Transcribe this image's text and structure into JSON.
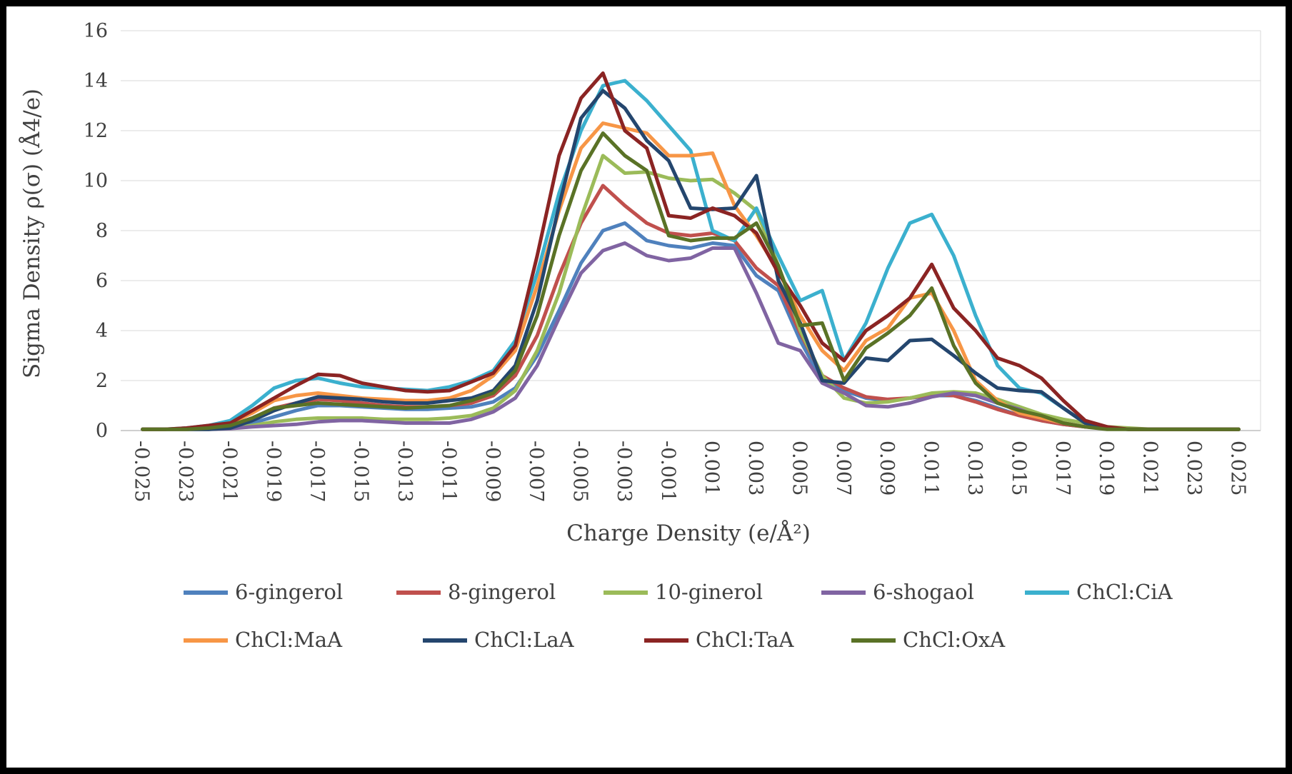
{
  "chart_data": {
    "type": "line",
    "title": "",
    "xlabel": "Charge  Density (e/Å²)",
    "ylabel": "Sigma Density ρ(σ) (Å4/e)",
    "ylim": [
      0,
      16
    ],
    "y_tick_step": 2,
    "y_tick_labels": [
      "0",
      "2",
      "4",
      "6",
      "8",
      "10",
      "12",
      "14",
      "16"
    ],
    "x_start": -0.025,
    "x_step": 0.001,
    "x_tick_labels": [
      "-0.025",
      "-0.023",
      "-0.021",
      "-0.019",
      "-0.017",
      "-0.015",
      "-0.013",
      "-0.011",
      "-0.009",
      "-0.007",
      "-0.005",
      "-0.003",
      "-0.001",
      "0.001",
      "0.003",
      "0.005",
      "0.007",
      "0.009",
      "0.011",
      "0.013",
      "0.015",
      "0.017",
      "0.019",
      "0.021",
      "0.023",
      "0.025"
    ],
    "grid": "horizontal",
    "legend_position": "bottom",
    "series": [
      {
        "name": "6-gingerol",
        "color": "#4F81BD",
        "values": [
          0.05,
          0.05,
          0.05,
          0.08,
          0.15,
          0.3,
          0.55,
          0.8,
          1.0,
          1.0,
          0.95,
          0.9,
          0.85,
          0.85,
          0.9,
          0.95,
          1.15,
          1.7,
          3.0,
          4.8,
          6.7,
          8.0,
          8.3,
          7.6,
          7.4,
          7.3,
          7.5,
          7.4,
          6.2,
          5.6,
          3.6,
          2.0,
          1.6,
          1.3,
          1.2,
          1.3,
          1.4,
          1.4,
          1.2,
          0.9,
          0.6,
          0.4,
          0.25,
          0.15,
          0.1,
          0.05,
          0.05,
          0.05,
          0.05,
          0.05,
          0.05
        ]
      },
      {
        "name": "8-gingerol",
        "color": "#C0504D",
        "values": [
          0.05,
          0.05,
          0.05,
          0.1,
          0.2,
          0.5,
          0.9,
          1.1,
          1.25,
          1.2,
          1.1,
          1.0,
          0.95,
          0.95,
          1.0,
          1.1,
          1.4,
          2.2,
          3.8,
          6.2,
          8.3,
          9.8,
          9.0,
          8.3,
          7.9,
          7.8,
          7.9,
          7.6,
          6.5,
          5.8,
          3.9,
          2.2,
          1.7,
          1.35,
          1.25,
          1.3,
          1.45,
          1.4,
          1.15,
          0.85,
          0.6,
          0.4,
          0.25,
          0.15,
          0.1,
          0.05,
          0.05,
          0.05,
          0.05,
          0.05,
          0.05
        ]
      },
      {
        "name": "10-ginerol",
        "color": "#9BBB59",
        "values": [
          0.05,
          0.05,
          0.05,
          0.05,
          0.1,
          0.2,
          0.35,
          0.45,
          0.5,
          0.5,
          0.5,
          0.45,
          0.45,
          0.45,
          0.5,
          0.6,
          0.9,
          1.6,
          3.2,
          5.5,
          8.5,
          11.0,
          10.3,
          10.35,
          10.1,
          10.0,
          10.05,
          9.5,
          8.8,
          6.6,
          4.0,
          2.2,
          1.3,
          1.1,
          1.15,
          1.3,
          1.5,
          1.55,
          1.5,
          1.25,
          0.95,
          0.65,
          0.45,
          0.3,
          0.15,
          0.1,
          0.05,
          0.05,
          0.05,
          0.05,
          0.05
        ]
      },
      {
        "name": "6-shogaol",
        "color": "#8064A2",
        "values": [
          0.05,
          0.05,
          0.05,
          0.05,
          0.08,
          0.15,
          0.2,
          0.25,
          0.35,
          0.4,
          0.4,
          0.35,
          0.3,
          0.3,
          0.3,
          0.45,
          0.75,
          1.3,
          2.6,
          4.5,
          6.3,
          7.2,
          7.5,
          7.0,
          6.8,
          6.9,
          7.3,
          7.3,
          5.5,
          3.5,
          3.2,
          1.9,
          1.5,
          1.0,
          0.95,
          1.1,
          1.35,
          1.5,
          1.4,
          1.1,
          0.85,
          0.5,
          0.3,
          0.15,
          0.1,
          0.05,
          0.05,
          0.05,
          0.05,
          0.05,
          0.05
        ]
      },
      {
        "name": "ChCl:CiA",
        "color": "#3BB0CE",
        "values": [
          0.05,
          0.05,
          0.1,
          0.2,
          0.4,
          1.0,
          1.7,
          2.0,
          2.1,
          1.9,
          1.75,
          1.7,
          1.65,
          1.6,
          1.75,
          2.0,
          2.4,
          3.6,
          6.3,
          9.5,
          12.0,
          13.8,
          14.0,
          13.2,
          12.2,
          11.2,
          8.0,
          7.6,
          8.9,
          7.0,
          5.2,
          5.6,
          2.8,
          4.3,
          6.5,
          8.3,
          8.65,
          7.0,
          4.6,
          2.6,
          1.7,
          1.5,
          0.9,
          0.3,
          0.1,
          0.05,
          0.05,
          0.05,
          0.05,
          0.05,
          0.05
        ]
      },
      {
        "name": "ChCl:MaA",
        "color": "#F79646",
        "values": [
          0.05,
          0.05,
          0.05,
          0.15,
          0.3,
          0.7,
          1.2,
          1.4,
          1.5,
          1.4,
          1.3,
          1.25,
          1.2,
          1.2,
          1.3,
          1.6,
          2.2,
          3.2,
          5.8,
          8.8,
          11.3,
          12.3,
          12.1,
          11.9,
          11.0,
          11.0,
          11.1,
          9.0,
          7.8,
          6.4,
          4.6,
          3.2,
          2.4,
          3.6,
          4.1,
          5.3,
          5.5,
          4.0,
          2.0,
          1.2,
          0.7,
          0.5,
          0.3,
          0.15,
          0.1,
          0.05,
          0.05,
          0.05,
          0.05,
          0.05,
          0.05
        ]
      },
      {
        "name": "ChCl:LaA",
        "color": "#24466E",
        "values": [
          0.05,
          0.05,
          0.05,
          0.05,
          0.1,
          0.4,
          0.8,
          1.1,
          1.35,
          1.3,
          1.25,
          1.15,
          1.1,
          1.1,
          1.2,
          1.3,
          1.6,
          2.6,
          5.2,
          9.0,
          12.5,
          13.6,
          12.9,
          11.6,
          10.8,
          8.9,
          8.85,
          8.9,
          10.2,
          6.0,
          4.3,
          2.0,
          1.9,
          2.9,
          2.8,
          3.6,
          3.65,
          3.0,
          2.3,
          1.7,
          1.6,
          1.55,
          0.9,
          0.3,
          0.1,
          0.05,
          0.05,
          0.05,
          0.05,
          0.05,
          0.05
        ]
      },
      {
        "name": "ChCl:TaA",
        "color": "#8B2423",
        "values": [
          0.05,
          0.05,
          0.1,
          0.2,
          0.3,
          0.8,
          1.3,
          1.8,
          2.25,
          2.2,
          1.9,
          1.75,
          1.6,
          1.55,
          1.6,
          1.95,
          2.3,
          3.4,
          7.0,
          11.0,
          13.3,
          14.3,
          12.0,
          11.3,
          8.6,
          8.5,
          8.9,
          8.6,
          7.9,
          6.3,
          5.0,
          3.5,
          2.8,
          4.0,
          4.6,
          5.3,
          6.65,
          4.9,
          4.0,
          2.9,
          2.6,
          2.1,
          1.2,
          0.4,
          0.15,
          0.05,
          0.05,
          0.05,
          0.05,
          0.05,
          0.05
        ]
      },
      {
        "name": "ChCl:OxA",
        "color": "#5A7226",
        "values": [
          0.05,
          0.05,
          0.05,
          0.1,
          0.2,
          0.5,
          0.9,
          1.0,
          1.1,
          1.05,
          1.0,
          0.95,
          0.9,
          0.95,
          1.0,
          1.2,
          1.5,
          2.4,
          4.6,
          7.8,
          10.4,
          11.9,
          11.0,
          10.4,
          7.8,
          7.6,
          7.7,
          7.7,
          8.3,
          6.6,
          4.2,
          4.3,
          2.0,
          3.3,
          3.9,
          4.6,
          5.7,
          3.4,
          1.9,
          1.1,
          0.8,
          0.6,
          0.3,
          0.15,
          0.05,
          0.05,
          0.05,
          0.05,
          0.05,
          0.05,
          0.05
        ]
      }
    ]
  }
}
